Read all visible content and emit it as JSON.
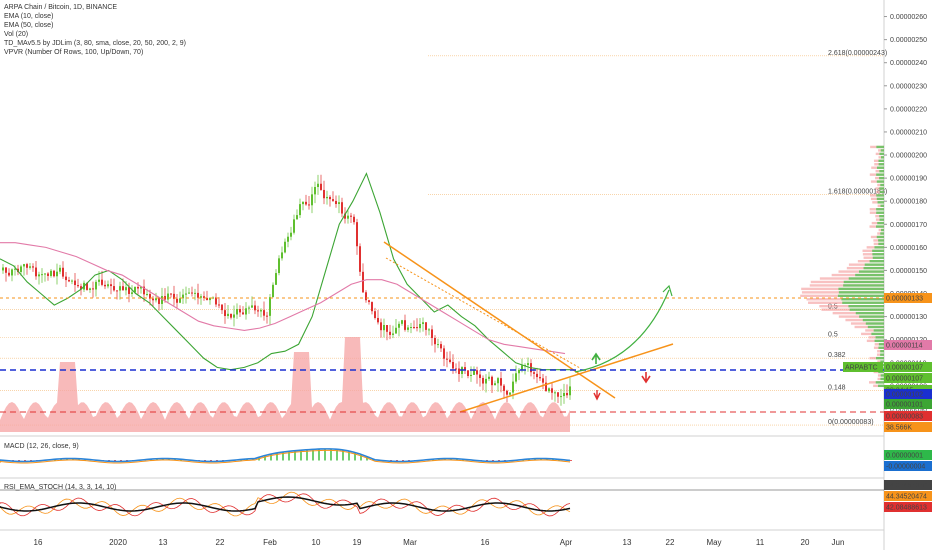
{
  "legend": {
    "title": "ARPA Chain / Bitcoin, 1D, BINANCE",
    "lines": [
      "EMA (10, close)",
      "EMA (50, close)",
      "Vol (20)",
      "TD_MAv5.5 by JDLim (3, 80, sma, close, 20, 50, 200, 2, 9)",
      "VPVR (Number Of Rows, 100, Up/Down, 70)"
    ],
    "macd": "MACD (12, 26, close, 9)",
    "rsi": "RSI_EMA_STOCH (14, 3, 3, 14, 10)"
  },
  "colors": {
    "up": "#5fbf2f",
    "down": "#e03030",
    "ema10": "#3ca534",
    "ema50": "#e27aa8",
    "fib": "#f0a040",
    "trend": "#f7931a",
    "arrow": "#40b040"
  },
  "chart_data": [
    {
      "type": "candlestick",
      "ylim": [
        8e-07,
        2.65e-06
      ],
      "y_ticks": [
        "0.00000260",
        "0.00000250",
        "0.00000240",
        "0.00000230",
        "0.00000220",
        "0.00000210",
        "0.00000200",
        "0.00000190",
        "0.00000180",
        "0.00000170",
        "0.00000160",
        "0.00000150",
        "0.00000140",
        "0.00000130",
        "0.00000120",
        "0.00000110",
        "0.00000100",
        "0.00000090"
      ],
      "x_ticks": [
        "16",
        "2020",
        "13",
        "22",
        "Feb",
        "10",
        "19",
        "Mar",
        "16",
        "Apr",
        "13",
        "22",
        "May",
        "11",
        "20",
        "Jun"
      ],
      "fib_levels": [
        {
          "label": "2.618(0.00000243)",
          "value": 2.43e-06
        },
        {
          "label": "1.618(0.00000183)",
          "value": 1.83e-06
        },
        {
          "label": "0.5",
          "value": 1.33e-06
        },
        {
          "label": "0.5",
          "value": 1.21e-06
        },
        {
          "label": "0.382",
          "value": 1.12e-06
        },
        {
          "label": "0.148",
          "value": 9.8e-07
        },
        {
          "label": "0(0.00000083)",
          "value": 8.3e-07
        }
      ],
      "price_labels": [
        {
          "text": "0.00000133",
          "color": "#f7931a"
        },
        {
          "text": "0.00000114",
          "color": "#e27aa8"
        },
        {
          "text": "0.00000107",
          "color": "#5fbf2f"
        },
        {
          "text": "ARPABTC",
          "color": "#5fbf2f"
        },
        {
          "text": "0.00000107",
          "color": "#5fbf2f"
        },
        {
          "text": "00:24:15",
          "color": "#5fbf2f"
        },
        {
          "text": "0.00000102",
          "color": "#1a2fd0"
        },
        {
          "text": "0.00000101",
          "color": "#3ca534"
        },
        {
          "text": "0.00000083",
          "color": "#e03030"
        },
        {
          "text": "38.566K",
          "color": "#f7931a"
        }
      ],
      "series": [
        {
          "name": "EMA (10, close)",
          "values": [
            1.55,
            1.52,
            1.45,
            1.4,
            1.35,
            1.38,
            1.42,
            1.48,
            1.5,
            1.46,
            1.4,
            1.36,
            1.3,
            1.24,
            1.18,
            1.12,
            1.08,
            1.07,
            1.08,
            1.1,
            1.14,
            1.15,
            1.18,
            1.3,
            1.5,
            1.7,
            1.8,
            1.92,
            1.75,
            1.55,
            1.44,
            1.38,
            1.32,
            1.35,
            1.3,
            1.26,
            1.2,
            1.15,
            1.1,
            1.08,
            1.07,
            1.07,
            1.07
          ]
        },
        {
          "name": "EMA (50, close)",
          "values": [
            1.62,
            1.62,
            1.61,
            1.6,
            1.58,
            1.56,
            1.53,
            1.5,
            1.48,
            1.44,
            1.4,
            1.36,
            1.32,
            1.28,
            1.26,
            1.25,
            1.24,
            1.25,
            1.27,
            1.3,
            1.33,
            1.36,
            1.4,
            1.44,
            1.46,
            1.46,
            1.44,
            1.4,
            1.36,
            1.32,
            1.28,
            1.24,
            1.2,
            1.18,
            1.17,
            1.16,
            1.15,
            1.14
          ]
        }
      ]
    },
    {
      "type": "area",
      "name": "Vol (20)",
      "values": [
        38.566
      ]
    },
    {
      "type": "line",
      "name": "MACD (12, 26, close, 9)",
      "labels": [
        "0.00000001",
        "-0.00000004"
      ]
    },
    {
      "type": "line",
      "name": "RSI_EMA_STOCH (14, 3, 3, 14, 10)",
      "labels": [
        "44.37467020",
        "44.34520474",
        "42.08488613"
      ]
    }
  ]
}
